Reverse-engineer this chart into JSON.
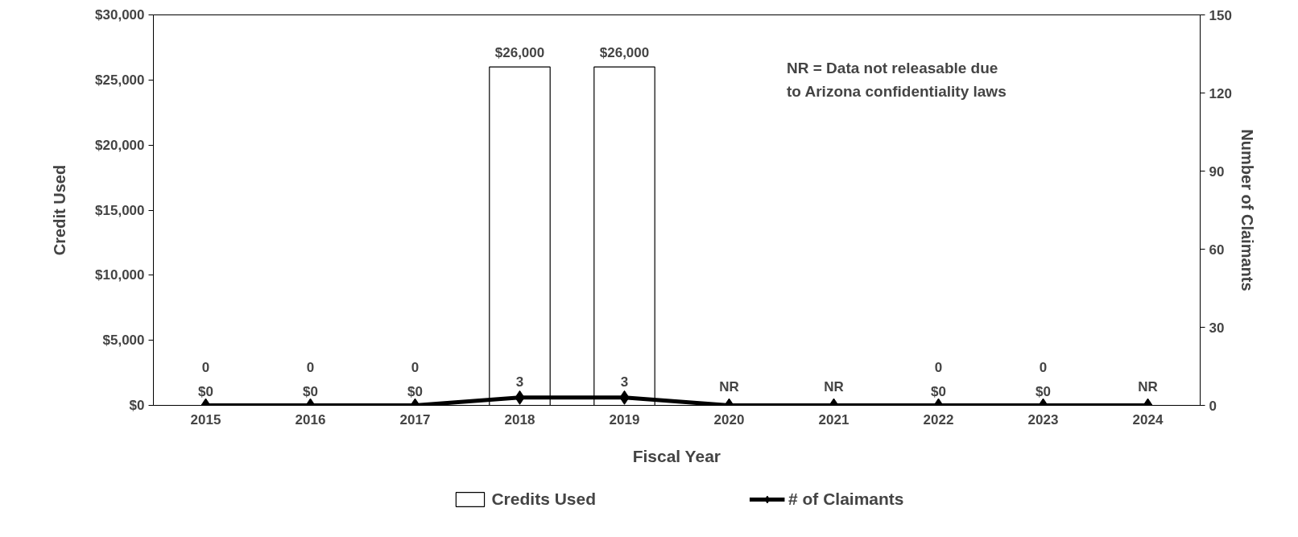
{
  "chart_data": {
    "type": "bar",
    "xlabel": "Fiscal Year",
    "ylabel": "Credit Used",
    "y2label": "Number of Claimants",
    "categories": [
      "2015",
      "2016",
      "2017",
      "2018",
      "2019",
      "2020",
      "2021",
      "2022",
      "2023",
      "2024"
    ],
    "series": [
      {
        "name": "Credits Used",
        "color": "#ffffff",
        "values": [
          0,
          0,
          0,
          26000,
          26000,
          null,
          null,
          0,
          0,
          null
        ],
        "value_labels": [
          "$0",
          "$0",
          "$0",
          "$26,000",
          "$26,000",
          null,
          null,
          "$0",
          "$0",
          null
        ]
      },
      {
        "name": "# of Claimants",
        "type": "line",
        "axis": "y2",
        "color": "#000000",
        "values": [
          0,
          0,
          0,
          3,
          3,
          0,
          0,
          0,
          0,
          0
        ],
        "value_labels": [
          "0",
          "0",
          "0",
          "3",
          "3",
          "NR",
          "NR",
          "0",
          "0",
          "NR"
        ]
      }
    ],
    "ylim": [
      0,
      30000
    ],
    "yticks": [
      {
        "value": 0,
        "label": "$0"
      },
      {
        "value": 5000,
        "label": "$5,000"
      },
      {
        "value": 10000,
        "label": "$10,000"
      },
      {
        "value": 15000,
        "label": "$15,000"
      },
      {
        "value": 20000,
        "label": "$20,000"
      },
      {
        "value": 25000,
        "label": "$25,000"
      },
      {
        "value": 30000,
        "label": "$30,000"
      }
    ],
    "y2lim": [
      0,
      150
    ],
    "y2ticks": [
      0,
      30,
      60,
      90,
      120,
      150
    ],
    "annotations": [
      "NR = Data not releasable due to Arizona confidentiality laws"
    ],
    "marker": "diamond",
    "line_style": "solid",
    "grid": false,
    "legend": "bottom"
  }
}
